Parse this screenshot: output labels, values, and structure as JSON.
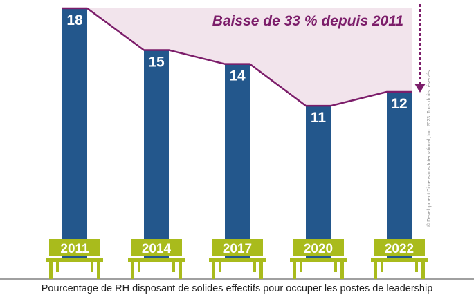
{
  "chart_data": {
    "type": "bar",
    "categories": [
      "2011",
      "2014",
      "2017",
      "2020",
      "2022"
    ],
    "values": [
      18,
      15,
      14,
      11,
      12
    ],
    "ylim": [
      0,
      18
    ],
    "annotation": "Baisse de 33 % depuis 2011",
    "caption": "Pourcentage de RH disposant de solides effectifs pour occuper les postes de leadership",
    "legend": "none",
    "grid": false
  },
  "copyright": "© Development Dimensions International, Inc. 2023. Tous droits réservés.",
  "colors": {
    "bar": "#23578c",
    "trend": "#7c1d6a",
    "area": "#f2e4ec",
    "bench": "#a9bb1c",
    "ground": "#a0a0a0",
    "annotation": "#7c1d6a"
  }
}
